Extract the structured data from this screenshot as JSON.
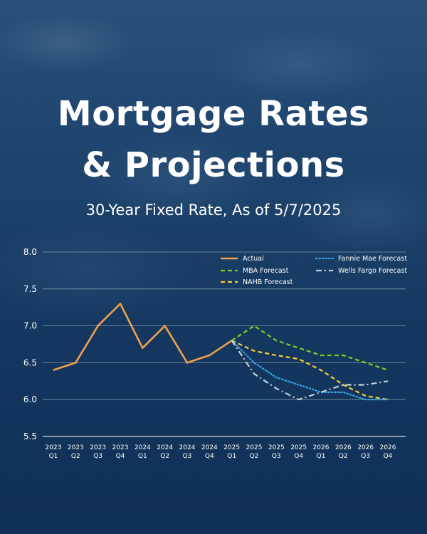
{
  "header": {
    "title_line1": "Mortgage Rates",
    "title_line2": "& Projections",
    "subtitle": "30-Year Fixed Rate, As of 5/7/2025"
  },
  "chart_data": {
    "type": "line",
    "categories": [
      [
        "2023",
        "Q1"
      ],
      [
        "2023",
        "Q2"
      ],
      [
        "2023",
        "Q3"
      ],
      [
        "2023",
        "Q4"
      ],
      [
        "2024",
        "Q1"
      ],
      [
        "2024",
        "Q2"
      ],
      [
        "2024",
        "Q3"
      ],
      [
        "2024",
        "Q4"
      ],
      [
        "2025",
        "Q1"
      ],
      [
        "2025",
        "Q2"
      ],
      [
        "2025",
        "Q3"
      ],
      [
        "2025",
        "Q4"
      ],
      [
        "2026",
        "Q1"
      ],
      [
        "2026",
        "Q2"
      ],
      [
        "2026",
        "Q3"
      ],
      [
        "2026",
        "Q4"
      ]
    ],
    "ylim": [
      5.5,
      8.0
    ],
    "yticks": [
      "8.0",
      "7.5",
      "7.0",
      "6.5",
      "6.0",
      "5.5"
    ],
    "grid": true,
    "legend_position": "top-right",
    "series": [
      {
        "name": "Actual",
        "color": "#f0a04b",
        "style": "solid",
        "values": [
          6.4,
          6.5,
          7.0,
          7.3,
          6.7,
          7.0,
          6.5,
          6.6,
          6.8,
          null,
          null,
          null,
          null,
          null,
          null,
          null
        ]
      },
      {
        "name": "MBA Forecast",
        "color": "#7ed321",
        "style": "dashed",
        "values": [
          null,
          null,
          null,
          null,
          null,
          null,
          null,
          null,
          6.8,
          7.0,
          6.8,
          6.7,
          6.6,
          6.6,
          6.5,
          6.4
        ]
      },
      {
        "name": "NAHB Forecast",
        "color": "#f5d033",
        "style": "dashed",
        "values": [
          null,
          null,
          null,
          null,
          null,
          null,
          null,
          null,
          6.8,
          6.66,
          6.6,
          6.55,
          6.4,
          6.2,
          6.05,
          6.0
        ]
      },
      {
        "name": "Fannie Mae Forecast",
        "color": "#3aa8e8",
        "style": "dotted",
        "values": [
          null,
          null,
          null,
          null,
          null,
          null,
          null,
          null,
          6.8,
          6.5,
          6.3,
          6.2,
          6.1,
          6.1,
          6.0,
          6.0
        ]
      },
      {
        "name": "Wells Fargo Forecast",
        "color": "#c8cfd8",
        "style": "dashdot",
        "values": [
          null,
          null,
          null,
          null,
          null,
          null,
          null,
          null,
          6.8,
          6.35,
          6.15,
          6.0,
          6.1,
          6.2,
          6.2,
          6.25
        ]
      }
    ]
  }
}
